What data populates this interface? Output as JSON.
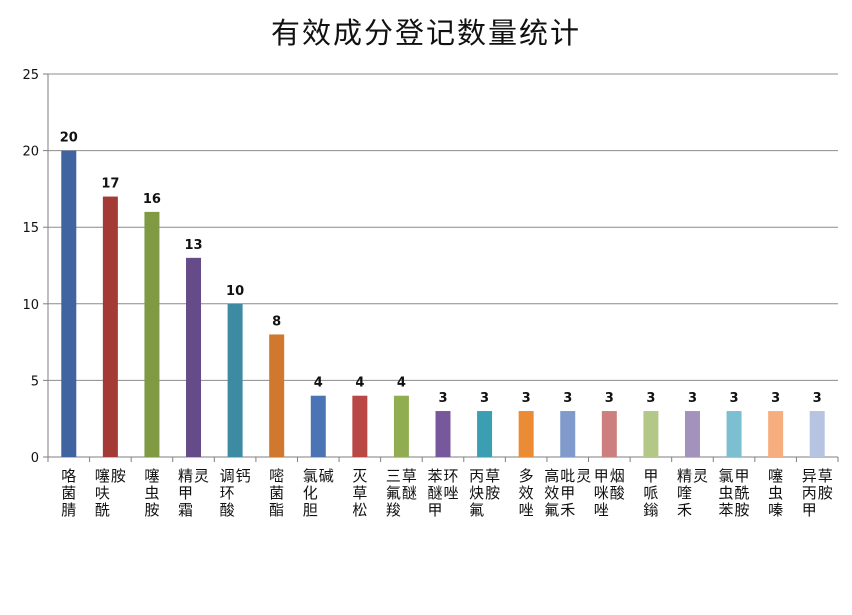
{
  "chart_data": {
    "type": "bar",
    "title": "有效成分登记数量统计",
    "xlabel": "",
    "ylabel": "",
    "ylim": [
      0,
      25
    ],
    "yticks": [
      0,
      5,
      10,
      15,
      20,
      25
    ],
    "grid": true,
    "legend": "none",
    "categories": [
      "咯菌腈",
      "噻呋酰胺",
      "噻虫胺",
      "精甲霜灵",
      "调环酸钙",
      "嘧菌酯",
      "氯化胆碱",
      "灭草松",
      "三氟羧草醚",
      "苯醚甲环唑",
      "丙炔氟草胺",
      "多效唑",
      "高效氟吡甲禾灵",
      "甲咪唑烟酸",
      "甲哌鎓",
      "精喹禾灵",
      "氯虫苯甲酰胺",
      "噻虫嗪",
      "异丙甲草胺"
    ],
    "values": [
      20,
      17,
      16,
      13,
      10,
      8,
      4,
      4,
      4,
      3,
      3,
      3,
      3,
      3,
      3,
      3,
      3,
      3,
      3
    ],
    "colors": [
      "#3f64a0",
      "#a33a36",
      "#7f9a43",
      "#654b87",
      "#3d8ba3",
      "#d1782f",
      "#4a74b4",
      "#b84745",
      "#91ad52",
      "#78589c",
      "#3b9eb3",
      "#ec8b35",
      "#7f9acb",
      "#cc7f7e",
      "#b3c887",
      "#a392bb",
      "#7cbfd0",
      "#f7ae7f",
      "#b6c4e1"
    ]
  }
}
